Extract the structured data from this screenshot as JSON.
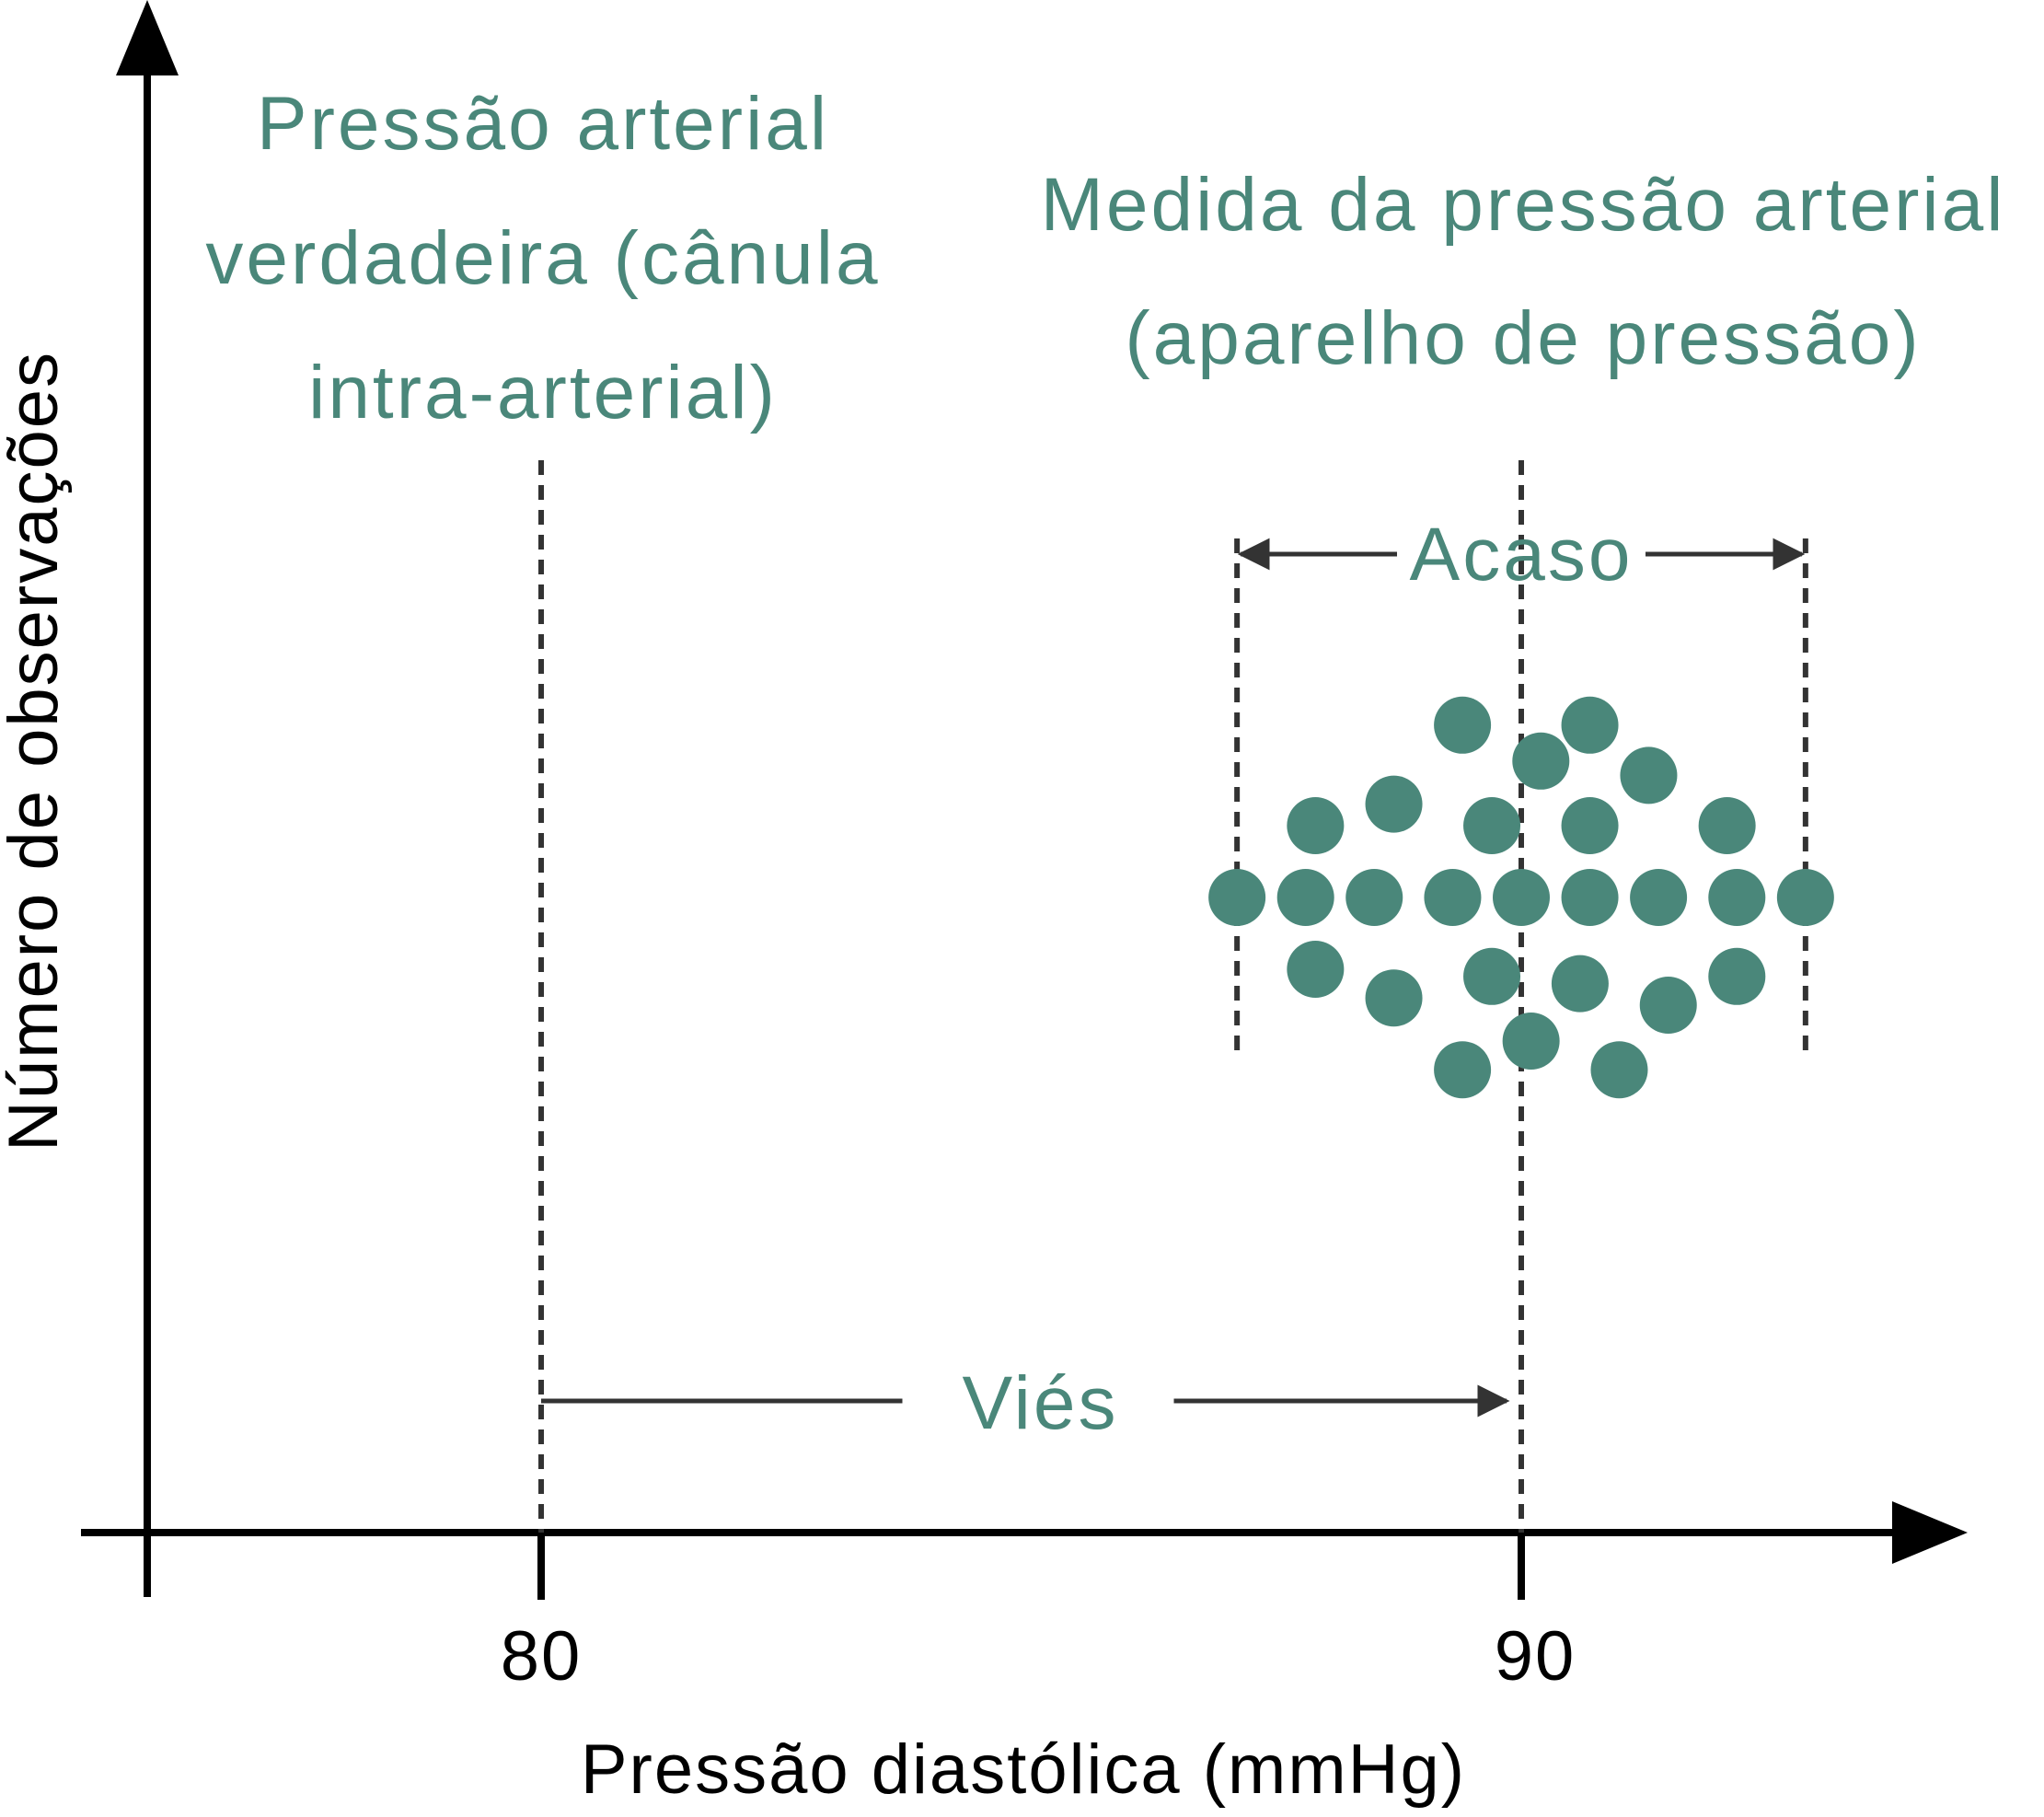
{
  "colors": {
    "accent": "#4a877a",
    "axis": "#000000",
    "guide": "#333333"
  },
  "axes": {
    "y_label": "Número de observações",
    "x_label": "Pressão diastólica (mmHg)",
    "ticks": [
      {
        "value": 80,
        "label": "80"
      },
      {
        "value": 90,
        "label": "90"
      }
    ]
  },
  "labels": {
    "true_pressure": [
      "Pressão arterial",
      "verdadeira (cânula",
      "intra-arterial)"
    ],
    "measured_pressure": [
      "Medida da pressão arterial",
      "(aparelho de pressão)"
    ],
    "chance": "Acaso",
    "bias": "Viés"
  },
  "diagram": {
    "true_value": 80,
    "measured_mean": 90,
    "spread_min": 87.1,
    "spread_max": 92.9,
    "measurements": [
      {
        "value": 87.1,
        "rank": 0
      },
      {
        "value": 87.8,
        "rank": 0
      },
      {
        "value": 88.5,
        "rank": 0
      },
      {
        "value": 89.3,
        "rank": 0
      },
      {
        "value": 90.0,
        "rank": 0
      },
      {
        "value": 90.7,
        "rank": 0
      },
      {
        "value": 91.4,
        "rank": 0
      },
      {
        "value": 92.2,
        "rank": 0
      },
      {
        "value": 92.9,
        "rank": 0
      },
      {
        "value": 87.9,
        "rank": 1
      },
      {
        "value": 88.7,
        "rank": 1.3
      },
      {
        "value": 89.7,
        "rank": 1
      },
      {
        "value": 90.7,
        "rank": 1
      },
      {
        "value": 92.1,
        "rank": 1
      },
      {
        "value": 90.2,
        "rank": 1.9
      },
      {
        "value": 91.3,
        "rank": 1.7
      },
      {
        "value": 89.4,
        "rank": 2.4
      },
      {
        "value": 90.7,
        "rank": 2.4
      },
      {
        "value": 87.9,
        "rank": -1
      },
      {
        "value": 88.7,
        "rank": -1.4
      },
      {
        "value": 89.7,
        "rank": -1.1
      },
      {
        "value": 90.6,
        "rank": -1.2
      },
      {
        "value": 91.5,
        "rank": -1.5
      },
      {
        "value": 92.2,
        "rank": -1.1
      },
      {
        "value": 90.1,
        "rank": -2
      },
      {
        "value": 89.4,
        "rank": -2.4
      },
      {
        "value": 91.0,
        "rank": -2.4
      }
    ]
  }
}
